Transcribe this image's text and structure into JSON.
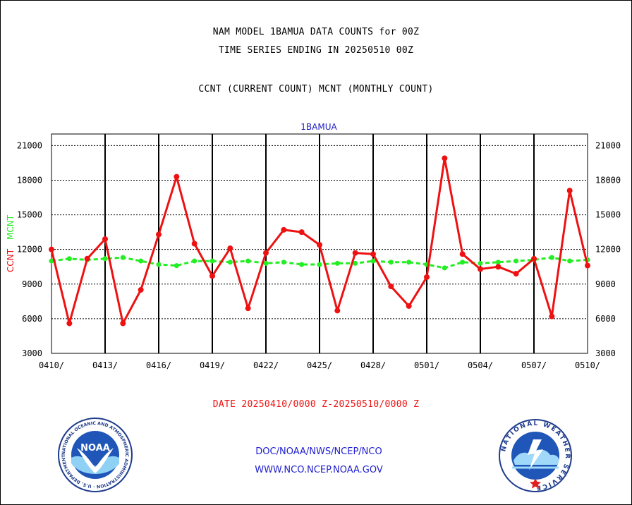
{
  "header": {
    "line1": "NAM MODEL 1BAMUA DATA COUNTS for 00Z",
    "line2": "TIME SERIES ENDING IN 20250510 00Z",
    "line3": "CCNT (CURRENT COUNT) MCNT (MONTHLY COUNT)"
  },
  "footer": {
    "date_range": "DATE 20250410/0000 Z-20250510/0000 Z",
    "link1": "DOC/NOAA/NWS/NCEP/NCO",
    "link2": "WWW.NCO.NCEP.NOAA.GOV",
    "noaa_logo_text": "NOAA",
    "noaa_logo_ring": "NATIONAL OCEANIC AND ATMOSPHERIC ADMINISTRATION · U.S. DEPARTMENT OF COMMERCE",
    "nws_logo_ring": "NATIONAL WEATHER SERVICE"
  },
  "colors": {
    "ccnt": "#ee1111",
    "mcnt": "#22ee22",
    "title_blue": "#2020c0",
    "link_blue": "#2020d0",
    "date_red": "#ee1111"
  },
  "chart_data": {
    "type": "line",
    "title": "1BAMUA",
    "ylabel_parts": [
      "CCNT",
      "MCNT"
    ],
    "ylim": [
      3000,
      22000
    ],
    "yticks": [
      3000,
      6000,
      9000,
      12000,
      15000,
      18000,
      21000
    ],
    "grid": true,
    "x_start": "0410",
    "x_ticks": [
      "0410/",
      "0413/",
      "0416/",
      "0419/",
      "0422/",
      "0425/",
      "0428/",
      "0501/",
      "0504/",
      "0507/",
      "0510/"
    ],
    "series": [
      {
        "name": "CCNT",
        "values": [
          12000,
          5600,
          11200,
          12900,
          5600,
          8500,
          13300,
          18300,
          12500,
          9700,
          12100,
          6900,
          11700,
          13700,
          13500,
          12400,
          6700,
          11700,
          11600,
          8800,
          7100,
          9600,
          19900,
          11600,
          10300,
          10500,
          9900,
          11200,
          6200,
          17100,
          10600
        ]
      },
      {
        "name": "MCNT",
        "values": [
          11000,
          11200,
          11100,
          11200,
          11300,
          11000,
          10700,
          10600,
          11000,
          11000,
          10900,
          11000,
          10800,
          10900,
          10700,
          10700,
          10800,
          10800,
          11000,
          10900,
          10900,
          10700,
          10400,
          10900,
          10800,
          10900,
          11000,
          11100,
          11300,
          11000,
          11100
        ]
      }
    ]
  }
}
